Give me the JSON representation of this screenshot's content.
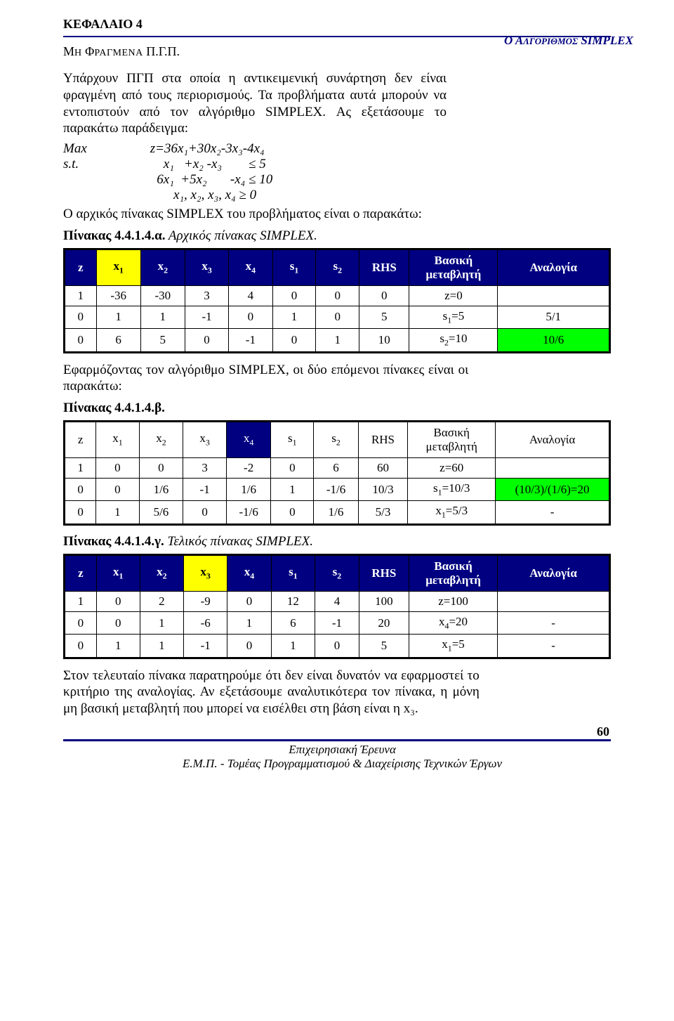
{
  "chapter": "ΚΕΦΑΛΑΙΟ 4",
  "section_title_html": "Μ<span class='rest'>Η</span> Φ<span class='rest'>ΡΑΓΜΕΝΑ</span> Π.Γ.Π.",
  "right_note_html": "Ο Α<span class='rest'>ΛΓΟΡΙΘΜΟΣ</span> SIMPLEX",
  "para1": "Υπάρχουν ΠΓΠ στα οποία η αντικειμενική συνάρτηση δεν είναι φραγμένη από τους περιορισμούς. Τα προβλήματα αυτά μπορούν να εντοπιστούν από τον αλγόριθμο SIMPLEX. Ας εξετάσουμε το παρακάτω παράδειγμα:",
  "math": {
    "labels": [
      "Max",
      "s.t."
    ],
    "lines": [
      "z=36x₁+30x₂-3x₃-4x₄",
      "    x₁   +x₂ -x₃        ≤ 5",
      "  6x₁  +5x₂       -x₄ ≤ 10",
      "       x₁, x₂, x₃, x₄ ≥ 0"
    ]
  },
  "para2": "Ο αρχικός πίνακας SIMPLEX του προβλήματος είναι ο παρακάτω:",
  "cap1_bold": "Πίνακας 4.4.1.4.α.",
  "cap1_ital": " Αρχικός πίνακας SIMPLEX.",
  "headers": [
    "z",
    "x₁",
    "x₂",
    "x₃",
    "x₄",
    "s₁",
    "s₂",
    "RHS",
    "Βασική μεταβλητή",
    "Αναλογία"
  ],
  "t1": {
    "rows": [
      [
        "1",
        "-36",
        "-30",
        "3",
        "4",
        "0",
        "0",
        "0",
        "z=0",
        ""
      ],
      [
        "0",
        "1",
        "1",
        "-1",
        "0",
        "1",
        "0",
        "5",
        "s₁=5",
        "5/1"
      ],
      [
        "0",
        "6",
        "5",
        "0",
        "-1",
        "0",
        "1",
        "10",
        "s₂=10",
        "10/6"
      ]
    ],
    "x1_col_head_highlight": true,
    "ratio_green_row": 2
  },
  "para3": "Εφαρμόζοντας τον αλγόριθμο SIMPLEX, οι δύο επόμενοι πίνακες είναι οι παρακάτω:",
  "cap2_bold": "Πίνακας 4.4.1.4.β.",
  "t2": {
    "rows": [
      [
        "1",
        "0",
        "0",
        "3",
        "-2",
        "0",
        "6",
        "60",
        "z=60",
        ""
      ],
      [
        "0",
        "0",
        "1/6",
        "-1",
        "1/6",
        "1",
        "-1/6",
        "10/3",
        "s₁=10/3",
        "(10/3)/(1/6)=20"
      ],
      [
        "0",
        "1",
        "5/6",
        "0",
        "-1/6",
        "0",
        "1/6",
        "5/3",
        "x₁=5/3",
        "-"
      ]
    ],
    "x4_col_head_highlight": true,
    "ratio_green_row": 1
  },
  "cap3_bold": "Πίνακας 4.4.1.4.γ.",
  "cap3_ital": " Τελικός πίνακας SIMPLEX.",
  "t3": {
    "rows": [
      [
        "1",
        "0",
        "2",
        "-9",
        "0",
        "12",
        "4",
        "100",
        "z=100",
        ""
      ],
      [
        "0",
        "0",
        "1",
        "-6",
        "1",
        "6",
        "-1",
        "20",
        "x₄=20",
        "-"
      ],
      [
        "0",
        "1",
        "1",
        "-1",
        "0",
        "1",
        "0",
        "5",
        "x₁=5",
        "-"
      ]
    ],
    "x3_col_head_highlight": true
  },
  "para4": "Στον τελευταίο πίνακα παρατηρούμε ότι δεν είναι δυνατόν να εφαρμοστεί το κριτήριο της αναλογίας. Αν εξετάσουμε αναλυτικότερα τον πίνακα, η μόνη μη βασική μεταβλητή που μπορεί να εισέλθει στη βάση είναι η x₃.",
  "footer": {
    "line1": "Επιχειρησιακή Έρευνα",
    "line2": "Ε.Μ.Π. - Τομέας Προγραμματισμού & Διαχείρισης Τεχνικών Έργων",
    "page": "60"
  },
  "colors": {
    "navy": "#000080",
    "yellow": "#ffff00",
    "green": "#00ff00"
  }
}
